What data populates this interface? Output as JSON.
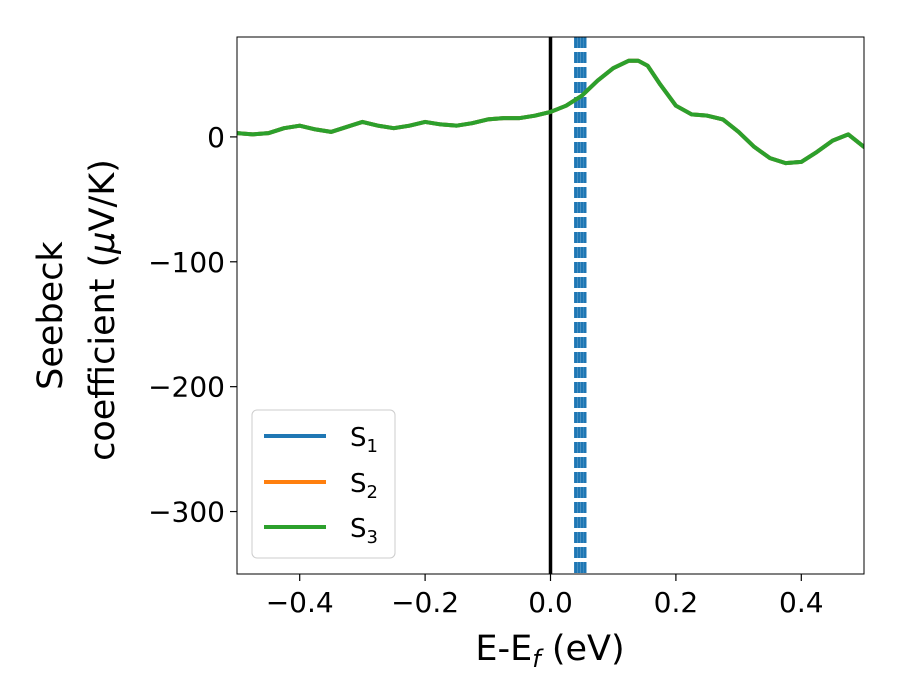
{
  "chart_data": {
    "type": "line",
    "xlabel": {
      "main": "E-E",
      "sub": "f",
      "unit": " (eV)"
    },
    "ylabel": {
      "line1": "Seebeck",
      "line2_prefix": "coefficient  (",
      "mu": "μ",
      "line2_suffix": "V/K)"
    },
    "xlim": [
      -0.5,
      0.5
    ],
    "ylim": [
      -350,
      80
    ],
    "xticks": [
      -0.4,
      -0.2,
      0.0,
      0.2,
      0.4
    ],
    "xtick_labels": [
      "−0.4",
      "−0.2",
      "0.0",
      "0.2",
      "0.4"
    ],
    "yticks": [
      -300,
      -200,
      -100,
      0
    ],
    "ytick_labels": [
      "−300",
      "−200",
      "−100",
      "0"
    ],
    "grid": false,
    "legend_position": "lower-left",
    "fermi_line": {
      "x": 0.0,
      "color": "#000000"
    },
    "dashed_lines": {
      "x": [
        0.04,
        0.045,
        0.05,
        0.055
      ],
      "color": "#1f77b4"
    },
    "series": [
      {
        "name": "S",
        "sub": "1",
        "color": "#1f77b4",
        "x": [
          -0.5,
          -0.475,
          -0.45,
          -0.425,
          -0.4,
          -0.375,
          -0.35,
          -0.325,
          -0.3,
          -0.275,
          -0.25,
          -0.225,
          -0.2,
          -0.175,
          -0.15,
          -0.125,
          -0.1,
          -0.075,
          -0.05,
          -0.025,
          0.0,
          0.025,
          0.05,
          0.075,
          0.1,
          0.125,
          0.14,
          0.155,
          0.175,
          0.2,
          0.225,
          0.25,
          0.275,
          0.3,
          0.325,
          0.35,
          0.375,
          0.4,
          0.425,
          0.45,
          0.475,
          0.5
        ],
        "y": [
          3,
          2,
          3,
          7,
          9,
          6,
          4,
          8,
          12,
          9,
          7,
          9,
          12,
          10,
          9,
          11,
          14,
          15,
          15,
          17,
          20,
          25,
          33,
          45,
          55,
          61,
          61,
          57,
          42,
          25,
          18,
          17,
          14,
          4,
          -8,
          -17,
          -21,
          -20,
          -12,
          -3,
          2,
          -8
        ]
      },
      {
        "name": "S",
        "sub": "2",
        "color": "#ff7f0e",
        "x": [
          -0.5,
          -0.475,
          -0.45,
          -0.425,
          -0.4,
          -0.375,
          -0.35,
          -0.325,
          -0.3,
          -0.275,
          -0.25,
          -0.225,
          -0.2,
          -0.175,
          -0.15,
          -0.125,
          -0.1,
          -0.075,
          -0.05,
          -0.025,
          0.0,
          0.025,
          0.05,
          0.075,
          0.1,
          0.125,
          0.14,
          0.155,
          0.175,
          0.2,
          0.225,
          0.25,
          0.275,
          0.3,
          0.325,
          0.35,
          0.375,
          0.4,
          0.425,
          0.45,
          0.475,
          0.5
        ],
        "y": [
          3,
          2,
          3,
          7,
          9,
          6,
          4,
          8,
          12,
          9,
          7,
          9,
          12,
          10,
          9,
          11,
          14,
          15,
          15,
          17,
          20,
          25,
          33,
          45,
          55,
          61,
          61,
          57,
          42,
          25,
          18,
          17,
          14,
          4,
          -8,
          -17,
          -21,
          -20,
          -12,
          -3,
          2,
          -8
        ]
      },
      {
        "name": "S",
        "sub": "3",
        "color": "#2ca02c",
        "x": [
          -0.5,
          -0.475,
          -0.45,
          -0.425,
          -0.4,
          -0.375,
          -0.35,
          -0.325,
          -0.3,
          -0.275,
          -0.25,
          -0.225,
          -0.2,
          -0.175,
          -0.15,
          -0.125,
          -0.1,
          -0.075,
          -0.05,
          -0.025,
          0.0,
          0.025,
          0.05,
          0.075,
          0.1,
          0.125,
          0.14,
          0.155,
          0.175,
          0.2,
          0.225,
          0.25,
          0.275,
          0.3,
          0.325,
          0.35,
          0.375,
          0.4,
          0.425,
          0.45,
          0.475,
          0.5
        ],
        "y": [
          3,
          2,
          3,
          7,
          9,
          6,
          4,
          8,
          12,
          9,
          7,
          9,
          12,
          10,
          9,
          11,
          14,
          15,
          15,
          17,
          20,
          25,
          33,
          45,
          55,
          61,
          61,
          57,
          42,
          25,
          18,
          17,
          14,
          4,
          -8,
          -17,
          -21,
          -20,
          -12,
          -3,
          2,
          -8
        ]
      }
    ]
  }
}
